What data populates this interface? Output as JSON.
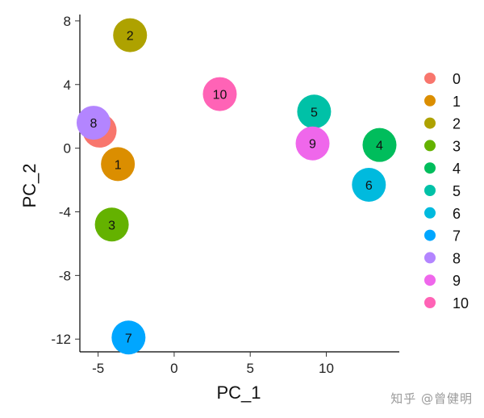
{
  "chart_data": {
    "type": "scatter",
    "xlabel": "PC_1",
    "ylabel": "PC_2",
    "xlim": [
      -6.2,
      14.8
    ],
    "ylim": [
      -12.8,
      8.4
    ],
    "x_ticks": [
      -5,
      0,
      5,
      10
    ],
    "y_ticks": [
      -12,
      -8,
      -4,
      0,
      4,
      8
    ],
    "x_tick_labels": [
      "-5",
      "0",
      "5",
      "10"
    ],
    "y_tick_labels": [
      "-12",
      "-8",
      "-4",
      "0",
      "4",
      "8"
    ],
    "grid": false,
    "legend_position": "right",
    "points": [
      {
        "label": "0",
        "x": -4.9,
        "y": 1.1,
        "color": "#F8766D"
      },
      {
        "label": "1",
        "x": -3.7,
        "y": -1.0,
        "color": "#DB8E00"
      },
      {
        "label": "2",
        "x": -2.9,
        "y": 7.1,
        "color": "#AEA200"
      },
      {
        "label": "3",
        "x": -4.1,
        "y": -4.8,
        "color": "#64B200"
      },
      {
        "label": "4",
        "x": 13.5,
        "y": 0.2,
        "color": "#00BD5C"
      },
      {
        "label": "5",
        "x": 9.2,
        "y": 2.3,
        "color": "#00C1A7"
      },
      {
        "label": "6",
        "x": 12.8,
        "y": -2.3,
        "color": "#00BADE"
      },
      {
        "label": "7",
        "x": -3.0,
        "y": -11.9,
        "color": "#00A6FF"
      },
      {
        "label": "8",
        "x": -5.3,
        "y": 1.6,
        "color": "#B385FF"
      },
      {
        "label": "9",
        "x": 9.1,
        "y": 0.3,
        "color": "#EF67EB"
      },
      {
        "label": "10",
        "x": 3.0,
        "y": 3.4,
        "color": "#FF63B6"
      }
    ],
    "legend": [
      {
        "label": "0",
        "color": "#F8766D"
      },
      {
        "label": "1",
        "color": "#DB8E00"
      },
      {
        "label": "2",
        "color": "#AEA200"
      },
      {
        "label": "3",
        "color": "#64B200"
      },
      {
        "label": "4",
        "color": "#00BD5C"
      },
      {
        "label": "5",
        "color": "#00C1A7"
      },
      {
        "label": "6",
        "color": "#00BADE"
      },
      {
        "label": "7",
        "color": "#00A6FF"
      },
      {
        "label": "8",
        "color": "#B385FF"
      },
      {
        "label": "9",
        "color": "#EF67EB"
      },
      {
        "label": "10",
        "color": "#FF63B6"
      }
    ]
  },
  "watermark": "知乎 @曾健明"
}
